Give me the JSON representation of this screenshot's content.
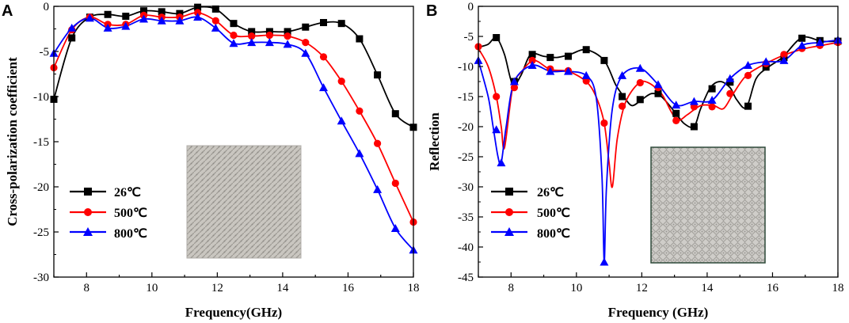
{
  "chart_data": [
    {
      "type": "line",
      "panel_label": "A",
      "xlabel": "Frequency(GHz)",
      "ylabel": "Cross-polarization coefficient",
      "xlim": [
        7,
        18
      ],
      "ylim": [
        -30,
        0
      ],
      "xticks": [
        8,
        10,
        12,
        14,
        16,
        18
      ],
      "yticks": [
        0,
        -5,
        -10,
        -15,
        -20,
        -25,
        -30
      ],
      "legend_position": "lower-left",
      "inset": "photo of metasurface sample",
      "series": [
        {
          "name": "26℃",
          "color": "#000000",
          "marker": "square",
          "x": [
            7,
            7.55,
            8.1,
            8.65,
            9.2,
            9.75,
            10.3,
            10.85,
            11.4,
            11.95,
            12.5,
            13.05,
            13.6,
            14.15,
            14.7,
            15.25,
            15.8,
            16.35,
            16.9,
            17.45,
            18
          ],
          "y": [
            -10.3,
            -3.5,
            -1.2,
            -0.9,
            -1.1,
            -0.5,
            -0.6,
            -0.8,
            -0.1,
            -0.3,
            -1.9,
            -2.8,
            -2.8,
            -2.8,
            -2.3,
            -1.8,
            -1.9,
            -3.6,
            -7.6,
            -11.9,
            -13.4
          ]
        },
        {
          "name": "500℃",
          "color": "#ff0000",
          "marker": "circle",
          "x": [
            7,
            7.55,
            8.1,
            8.65,
            9.2,
            9.75,
            10.3,
            10.85,
            11.4,
            11.95,
            12.5,
            13.05,
            13.6,
            14.15,
            14.7,
            15.25,
            15.8,
            16.35,
            16.9,
            17.45,
            18
          ],
          "y": [
            -6.8,
            -2.6,
            -1.2,
            -2.0,
            -2.0,
            -1.0,
            -1.2,
            -1.2,
            -0.7,
            -1.6,
            -3.2,
            -3.3,
            -3.2,
            -3.3,
            -4.0,
            -5.6,
            -8.3,
            -11.6,
            -15.2,
            -19.6,
            -23.9
          ]
        },
        {
          "name": "800℃",
          "color": "#0000ff",
          "marker": "triangle",
          "x": [
            7,
            7.55,
            8.1,
            8.65,
            9.2,
            9.75,
            10.3,
            10.85,
            11.4,
            11.95,
            12.5,
            13.05,
            13.6,
            14.15,
            14.7,
            15.25,
            15.8,
            16.35,
            16.9,
            17.45,
            18
          ],
          "y": [
            -5.2,
            -2.4,
            -1.3,
            -2.4,
            -2.2,
            -1.4,
            -1.6,
            -1.6,
            -1.2,
            -2.4,
            -4.1,
            -4.0,
            -4.0,
            -4.2,
            -5.2,
            -9.0,
            -12.7,
            -16.3,
            -20.3,
            -24.6,
            -27.0
          ]
        }
      ]
    },
    {
      "type": "line",
      "panel_label": "B",
      "xlabel": "Frequency (GHz)",
      "ylabel": "Reflection",
      "xlim": [
        7,
        18
      ],
      "ylim": [
        -45,
        0
      ],
      "xticks": [
        8,
        10,
        12,
        14,
        16,
        18
      ],
      "yticks": [
        0,
        -5,
        -10,
        -15,
        -20,
        -25,
        -30,
        -35,
        -40,
        -45
      ],
      "legend_position": "lower-left",
      "inset": "photo of metasurface sample",
      "series": [
        {
          "name": "26℃",
          "color": "#000000",
          "marker": "square",
          "curve_x": [
            7,
            7.3,
            7.55,
            7.8,
            8.05,
            8.3,
            8.6,
            9.0,
            9.4,
            9.8,
            10.3,
            10.85,
            11.2,
            11.45,
            11.7,
            12.0,
            12.3,
            12.6,
            13.0,
            13.3,
            13.6,
            13.8,
            14.1,
            14.4,
            14.7,
            14.9,
            15.2,
            15.5,
            15.9,
            16.3,
            16.9,
            17.5,
            18
          ],
          "curve_y": [
            -6.8,
            -6.3,
            -5.2,
            -8.0,
            -13.0,
            -11.5,
            -8.0,
            -8.3,
            -8.5,
            -8.0,
            -7.2,
            -9.0,
            -13.0,
            -15.0,
            -16.5,
            -15.5,
            -14.5,
            -15.0,
            -17.5,
            -19.5,
            -20.0,
            -17.0,
            -13.5,
            -12.5,
            -13.5,
            -15.5,
            -16.8,
            -12.0,
            -10.0,
            -8.5,
            -5.2,
            -5.8,
            -5.8
          ],
          "marker_x": [
            7.55,
            8.1,
            8.65,
            9.2,
            9.75,
            10.3,
            10.85,
            11.4,
            11.95,
            12.5,
            13.05,
            13.6,
            14.15,
            14.7,
            15.25,
            15.8,
            16.35,
            16.9,
            17.45,
            18
          ],
          "marker_y": [
            -5.2,
            -12.5,
            -8.0,
            -8.5,
            -8.3,
            -7.2,
            -9.0,
            -15.0,
            -15.5,
            -14.5,
            -17.8,
            -20.0,
            -13.7,
            -12.6,
            -16.6,
            -10.1,
            -8.5,
            -5.3,
            -5.7,
            -5.8
          ]
        },
        {
          "name": "500℃",
          "color": "#ff0000",
          "marker": "circle",
          "curve_x": [
            7,
            7.3,
            7.55,
            7.7,
            7.8,
            8.05,
            8.3,
            8.7,
            9.2,
            9.75,
            10.3,
            10.6,
            10.85,
            11.0,
            11.1,
            11.25,
            11.5,
            11.9,
            12.2,
            12.6,
            12.9,
            13.1,
            13.4,
            13.8,
            14.2,
            14.5,
            14.8,
            15.2,
            15.8,
            16.4,
            17.0,
            17.5,
            18
          ],
          "curve_y": [
            -7.0,
            -10.0,
            -15.0,
            -20.0,
            -23.5,
            -13.5,
            -11.0,
            -9.0,
            -10.5,
            -10.8,
            -12.5,
            -15.0,
            -19.4,
            -26.0,
            -30.0,
            -22.0,
            -16.0,
            -12.8,
            -12.7,
            -14.5,
            -17.5,
            -19.0,
            -18.0,
            -16.5,
            -16.5,
            -17.0,
            -14.5,
            -11.5,
            -9.5,
            -8.0,
            -7.0,
            -6.5,
            -6.0
          ],
          "marker_x": [
            7,
            7.55,
            8.1,
            8.65,
            9.2,
            9.75,
            10.3,
            10.85,
            11.4,
            11.95,
            12.5,
            13.05,
            13.6,
            14.15,
            14.7,
            15.25,
            15.8,
            16.35,
            16.9,
            17.45,
            18
          ],
          "marker_y": [
            -6.7,
            -15.0,
            -13.5,
            -9.0,
            -10.4,
            -10.7,
            -12.4,
            -19.4,
            -16.6,
            -12.7,
            -13.5,
            -19.0,
            -16.7,
            -16.7,
            -14.5,
            -11.5,
            -9.5,
            -8.0,
            -7.0,
            -6.5,
            -6.0
          ]
        },
        {
          "name": "800℃",
          "color": "#0000ff",
          "marker": "triangle",
          "curve_x": [
            7,
            7.3,
            7.45,
            7.6,
            7.7,
            7.85,
            8.1,
            8.65,
            9.2,
            9.75,
            10.3,
            10.6,
            10.78,
            10.85,
            10.92,
            11.1,
            11.4,
            11.95,
            12.5,
            13.05,
            13.6,
            14.15,
            14.7,
            15.25,
            15.8,
            16.35,
            16.9,
            17.45,
            18
          ],
          "curve_y": [
            -9.0,
            -15.0,
            -20.0,
            -25.0,
            -26.0,
            -20.0,
            -12.5,
            -9.8,
            -10.8,
            -10.8,
            -11.5,
            -15.0,
            -28.0,
            -42.5,
            -30.0,
            -17.0,
            -11.5,
            -10.3,
            -13.0,
            -16.4,
            -15.8,
            -15.6,
            -12.0,
            -9.8,
            -9.2,
            -9.0,
            -6.5,
            -6.0,
            -5.6
          ],
          "marker_x": [
            7,
            7.55,
            7.7,
            8.1,
            8.65,
            9.2,
            9.75,
            10.3,
            10.85,
            11.4,
            11.95,
            12.5,
            13.05,
            13.6,
            14.15,
            14.7,
            15.25,
            15.8,
            16.35,
            16.9,
            17.45,
            18
          ],
          "marker_y": [
            -9.0,
            -20.5,
            -26.0,
            -12.5,
            -9.8,
            -10.8,
            -10.8,
            -11.5,
            -42.5,
            -11.5,
            -10.3,
            -13.0,
            -16.4,
            -15.8,
            -15.6,
            -12.0,
            -9.8,
            -9.2,
            -9.0,
            -6.5,
            -6.0,
            -5.6
          ]
        }
      ]
    }
  ]
}
